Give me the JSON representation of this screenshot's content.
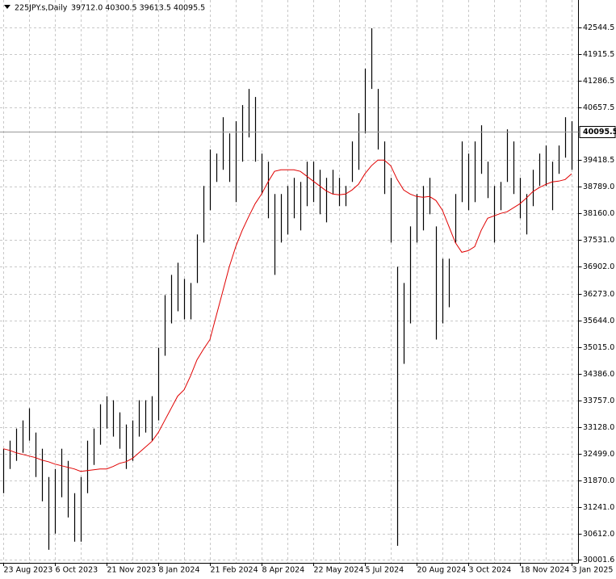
{
  "chart_data": {
    "type": "ohlc",
    "title": "225JPY.s,Daily",
    "ohlc_text": "39712.0 40300.5 39613.5 40095.5",
    "categories": [
      "23 Aug 2023",
      null,
      null,
      null,
      null,
      null,
      null,
      null,
      "6 Oct 2023",
      null,
      null,
      null,
      null,
      null,
      null,
      null,
      "21 Nov 2023",
      null,
      null,
      null,
      null,
      null,
      null,
      null,
      "8 Jan 2024",
      null,
      null,
      null,
      null,
      null,
      null,
      null,
      "21 Feb 2024",
      null,
      null,
      null,
      null,
      null,
      null,
      null,
      "8 Apr 2024",
      null,
      null,
      null,
      null,
      null,
      null,
      null,
      "22 May 2024",
      null,
      null,
      null,
      null,
      null,
      null,
      null,
      "5 Jul 2024",
      null,
      null,
      null,
      null,
      null,
      null,
      null,
      "20 Aug 2024",
      null,
      null,
      null,
      null,
      null,
      null,
      null,
      "3 Oct 2024",
      null,
      null,
      null,
      null,
      null,
      null,
      null,
      "18 Nov 2024",
      null,
      null,
      null,
      null,
      null,
      null,
      null,
      "3 Jan 2025"
    ],
    "high": [
      32615,
      32805,
      33091,
      33282,
      33568,
      32996,
      32615,
      31948,
      32138,
      32615,
      32329,
      31567,
      31948,
      32805,
      33091,
      33663,
      33853,
      33758,
      33472,
      33186,
      33282,
      33758,
      33758,
      33853,
      34997,
      36236,
      36713,
      36999,
      36618,
      36522,
      37666,
      38809,
      39667,
      39572,
      40429,
      40048,
      40334,
      40715,
      41096,
      40906,
      39572,
      39381,
      38619,
      38619,
      38809,
      39000,
      38904,
      39381,
      39381,
      39190,
      39000,
      39190,
      39000,
      38809,
      39858,
      40525,
      41573,
      42526,
      41096,
      39858,
      39000,
      36903,
      36522,
      37856,
      38619,
      38809,
      39000,
      37856,
      37094,
      37094,
      38619,
      39858,
      39572,
      39858,
      40239,
      39381,
      38809,
      38904,
      40143,
      39858,
      39000,
      38619,
      39190,
      39572,
      39762,
      39381,
      39762,
      40429,
      40334
    ],
    "low": [
      31567,
      32138,
      32329,
      32519,
      32805,
      31948,
      31376,
      30233,
      30614,
      31471,
      30995,
      30424,
      30424,
      31567,
      32233,
      32710,
      33091,
      32901,
      32615,
      32138,
      32329,
      32901,
      32996,
      32805,
      33282,
      34807,
      35569,
      35855,
      35664,
      35664,
      36522,
      37475,
      38237,
      38904,
      39190,
      38904,
      38428,
      39381,
      39953,
      39381,
      38619,
      38047,
      36713,
      37475,
      37666,
      38047,
      37761,
      38333,
      38428,
      38142,
      37951,
      38619,
      38333,
      38333,
      38904,
      39190,
      40048,
      41096,
      39667,
      38619,
      37475,
      30328,
      34616,
      35569,
      37475,
      37761,
      38142,
      35188,
      35569,
      35950,
      37475,
      38428,
      38237,
      38428,
      39095,
      38523,
      37475,
      38237,
      38904,
      38619,
      38047,
      37666,
      38333,
      38809,
      38809,
      38237,
      39095,
      39476,
      39190
    ],
    "ma_values": [
      32614,
      32576,
      32519,
      32481,
      32443,
      32405,
      32347,
      32309,
      32252,
      32214,
      32176,
      32138,
      32081,
      32100,
      32119,
      32138,
      32138,
      32195,
      32271,
      32309,
      32386,
      32519,
      32652,
      32786,
      32995,
      33281,
      33567,
      33853,
      34005,
      34330,
      34711,
      34959,
      35187,
      35759,
      36331,
      36903,
      37379,
      37761,
      38085,
      38390,
      38618,
      38904,
      39152,
      39190,
      39190,
      39190,
      39152,
      39038,
      38923,
      38809,
      38695,
      38618,
      38599,
      38618,
      38714,
      38847,
      39095,
      39285,
      39419,
      39419,
      39285,
      38961,
      38714,
      38618,
      38561,
      38542,
      38561,
      38466,
      38237,
      37856,
      37475,
      37246,
      37284,
      37379,
      37761,
      38047,
      38104,
      38161,
      38199,
      38294,
      38390,
      38523,
      38676,
      38771,
      38847,
      38904,
      38923,
      38961,
      39095
    ],
    "bar_color": "#000000",
    "ma_color": "#e00000",
    "last_price": 40095.5,
    "ylim": [
      29925,
      43154
    ],
    "yticks": [
      42544.5,
      41915.5,
      41286.5,
      40657.5,
      39418.5,
      {
        "value": 38789.0,
        "label": "38789.0"
      },
      {
        "value": 38160.0,
        "label": "38160.0"
      },
      {
        "value": 37531.0,
        "label": "37531.0"
      },
      {
        "value": 36902.0,
        "label": "36902.0"
      },
      {
        "value": 36273.0,
        "label": "36273.0"
      },
      {
        "value": 35644.0,
        "label": "35644.0"
      },
      {
        "value": 35015.0,
        "label": "35015.0"
      },
      {
        "value": 34386.0,
        "label": "34386.0"
      },
      {
        "value": 33757.0,
        "label": "33757.0"
      },
      {
        "value": 33128.0,
        "label": "33128.0"
      },
      {
        "value": 32499.0,
        "label": "32499.0"
      },
      {
        "value": 31870.0,
        "label": "31870.0"
      },
      {
        "value": 31241.0,
        "label": "31241.0"
      },
      {
        "value": 30612.0,
        "label": "30612.0"
      },
      30001.6
    ],
    "grid": true
  }
}
